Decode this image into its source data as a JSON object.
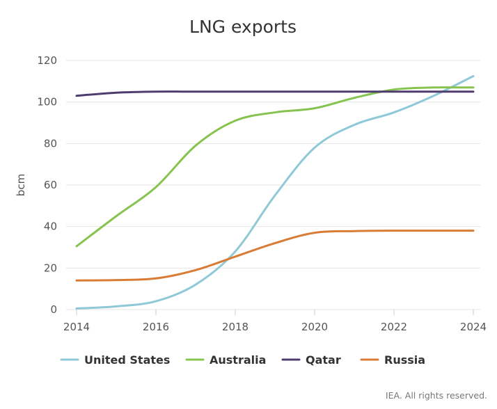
{
  "chart_data": {
    "type": "line",
    "title": "LNG exports",
    "ylabel": "bcm",
    "xlabel": "",
    "xlim": [
      2014,
      2024
    ],
    "ylim": [
      0,
      120
    ],
    "x_ticks": [
      2014,
      2016,
      2018,
      2020,
      2022,
      2024
    ],
    "y_ticks": [
      0,
      20,
      40,
      60,
      80,
      100,
      120
    ],
    "grid": true,
    "legend_position": "bottom",
    "x": [
      2014,
      2015,
      2016,
      2017,
      2018,
      2019,
      2020,
      2021,
      2022,
      2023,
      2024
    ],
    "series": [
      {
        "name": "United States",
        "color": "#8fc9d8",
        "values": [
          0.5,
          1.5,
          4,
          12,
          28,
          55,
          78,
          89,
          95,
          103,
          112.5
        ]
      },
      {
        "name": "Australia",
        "color": "#86c34f",
        "values": [
          30.5,
          45,
          59,
          79,
          91,
          95,
          97,
          102,
          106,
          107,
          107
        ]
      },
      {
        "name": "Qatar",
        "color": "#4f3c6e",
        "values": [
          103,
          104.5,
          105,
          105,
          105,
          105,
          105,
          105,
          105,
          105,
          105
        ]
      },
      {
        "name": "Russia",
        "color": "#d97b35",
        "values": [
          14,
          14.2,
          15,
          19,
          25.5,
          32,
          37,
          37.8,
          38,
          38,
          38
        ]
      }
    ]
  },
  "credit": "IEA. All rights reserved."
}
